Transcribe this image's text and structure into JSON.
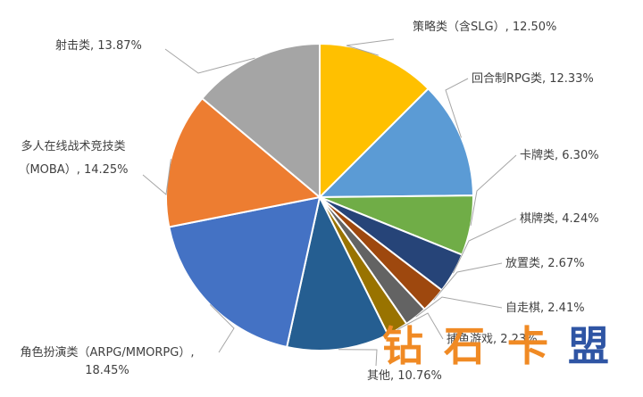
{
  "chart_data": {
    "type": "pie",
    "title": "",
    "slices": [
      {
        "name": "策略类（含SLG）",
        "value": 12.5,
        "value_label": "12.50%",
        "color": "#FFC000",
        "label_lines": [
          "策略类（含SLG）, 12.50%"
        ]
      },
      {
        "name": "回合制RPG类",
        "value": 12.33,
        "value_label": "12.33%",
        "color": "#5B9BD5",
        "label_lines": [
          "回合制RPG类, 12.33%"
        ]
      },
      {
        "name": "卡牌类",
        "value": 6.3,
        "value_label": "6.30%",
        "color": "#70AD47",
        "label_lines": [
          "卡牌类, 6.30%"
        ]
      },
      {
        "name": "棋牌类",
        "value": 4.24,
        "value_label": "4.24%",
        "color": "#264478",
        "label_lines": [
          "棋牌类, 4.24%"
        ]
      },
      {
        "name": "放置类",
        "value": 2.67,
        "value_label": "2.67%",
        "color": "#9E480E",
        "label_lines": [
          "放置类, 2.67%"
        ]
      },
      {
        "name": "自走棋",
        "value": 2.41,
        "value_label": "2.41%",
        "color": "#636363",
        "label_lines": [
          "自走棋, 2.41%"
        ]
      },
      {
        "name": "捕鱼游戏",
        "value": 2.23,
        "value_label": "2.23%",
        "color": "#997300",
        "label_lines": [
          "捕鱼游戏, 2.23%"
        ]
      },
      {
        "name": "其他",
        "value": 10.76,
        "value_label": "10.76%",
        "color": "#255E91",
        "label_lines": [
          "其他, 10.76%"
        ]
      },
      {
        "name": "角色扮演类（ARPG/MMORPG）",
        "value": 18.45,
        "value_label": "18.45%",
        "color": "#4472C4",
        "label_lines": [
          "角色扮演类（ARPG/MMORPG）,",
          "18.45%"
        ]
      },
      {
        "name": "多人在线战术竞技类（MOBA）",
        "value": 14.25,
        "value_label": "14.25%",
        "color": "#ED7D31",
        "label_lines": [
          "多人在线战术竞技类",
          "（MOBA）, 14.25%"
        ]
      },
      {
        "name": "射击类",
        "value": 13.87,
        "value_label": "13.87%",
        "color": "#A5A5A5",
        "label_lines": [
          "射击类, 13.87%"
        ]
      }
    ],
    "start_angle_deg": 0,
    "direction": "clockwise",
    "legend": "none",
    "leader_line_color": "#A6A6A6"
  },
  "watermark": {
    "text": "钻石卡盟",
    "chars": [
      "钻",
      "石",
      "卡",
      "盟"
    ],
    "colors": [
      "#F08A24",
      "#F08A24",
      "#F08A24",
      "#2F55A4"
    ]
  }
}
